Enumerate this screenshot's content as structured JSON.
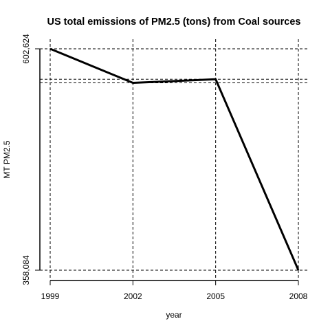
{
  "chart_data": {
    "type": "line",
    "title": "US total emissions of PM2.5 (tons) from Coal sources",
    "xlabel": "year",
    "ylabel": "MT PM2.5",
    "x": [
      1999,
      2002,
      2005,
      2008
    ],
    "series": [
      {
        "values": [
          602.624,
          565.0,
          569.0,
          358.084
        ]
      }
    ],
    "x_tick_labels": [
      "1999",
      "2002",
      "2005",
      "2008"
    ],
    "y_tick_labels": [
      "358,084",
      "602,624"
    ],
    "y_ticks": [
      358.084,
      602.624
    ],
    "xlim": [
      1999,
      2008
    ],
    "ylim": [
      358.084,
      602.624
    ],
    "reference_lines": {
      "vertical": [
        1999,
        2002,
        2005,
        2008
      ],
      "horizontal": [
        602.624,
        569.0,
        565.0,
        358.084
      ],
      "style": "dashed"
    },
    "grid": false,
    "legend": "none",
    "line_color": "#000000"
  }
}
